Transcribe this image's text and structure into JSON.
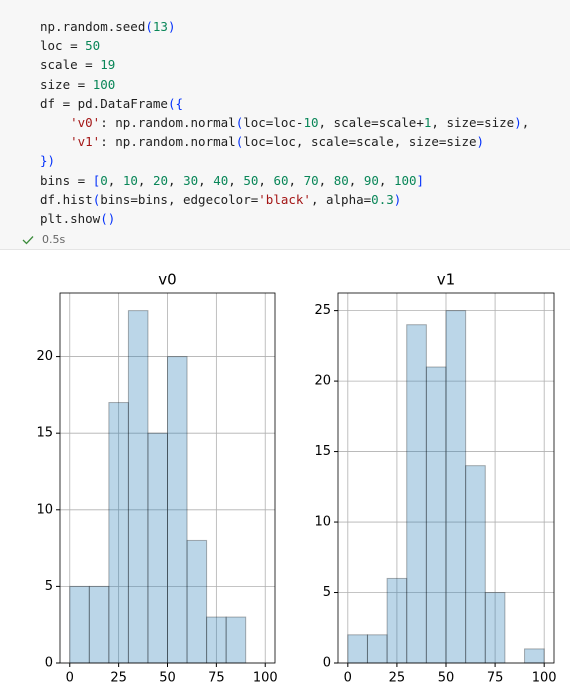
{
  "code": {
    "lines": [
      "np.random.seed(13)",
      "loc = 50",
      "scale = 19",
      "size = 100",
      "df = pd.DataFrame({",
      "    'v0': np.random.normal(loc=loc-10, scale=scale+1, size=size),",
      "    'v1': np.random.normal(loc=loc, scale=scale, size=size)",
      "})",
      "bins = [0, 10, 20, 30, 40, 50, 60, 70, 80, 90, 100]",
      "df.hist(bins=bins, edgecolor='black', alpha=0.3)",
      "plt.show()"
    ],
    "status": "0.5s"
  },
  "chart_data": [
    {
      "type": "histogram",
      "title": "v0",
      "bins": [
        0,
        10,
        20,
        30,
        40,
        50,
        60,
        70,
        80,
        90,
        100
      ],
      "values": [
        5,
        5,
        17,
        23,
        15,
        20,
        8,
        3,
        3,
        0
      ],
      "color": "#1f77b4",
      "edgecolor": "#000000",
      "alpha": 0.3,
      "xlim": [
        -5,
        105
      ],
      "xticks": [
        0,
        25,
        50,
        75,
        100
      ],
      "ylim": [
        0,
        24.15
      ],
      "yticks": [
        0,
        5,
        10,
        15,
        20
      ],
      "grid": true
    },
    {
      "type": "histogram",
      "title": "v1",
      "bins": [
        0,
        10,
        20,
        30,
        40,
        50,
        60,
        70,
        80,
        90,
        100
      ],
      "values": [
        2,
        2,
        6,
        24,
        21,
        25,
        14,
        5,
        0,
        1
      ],
      "color": "#1f77b4",
      "edgecolor": "#000000",
      "alpha": 0.3,
      "xlim": [
        -5,
        105
      ],
      "xticks": [
        0,
        25,
        50,
        75,
        100
      ],
      "ylim": [
        0,
        26.25
      ],
      "yticks": [
        0,
        5,
        10,
        15,
        20,
        25
      ],
      "grid": true
    }
  ]
}
